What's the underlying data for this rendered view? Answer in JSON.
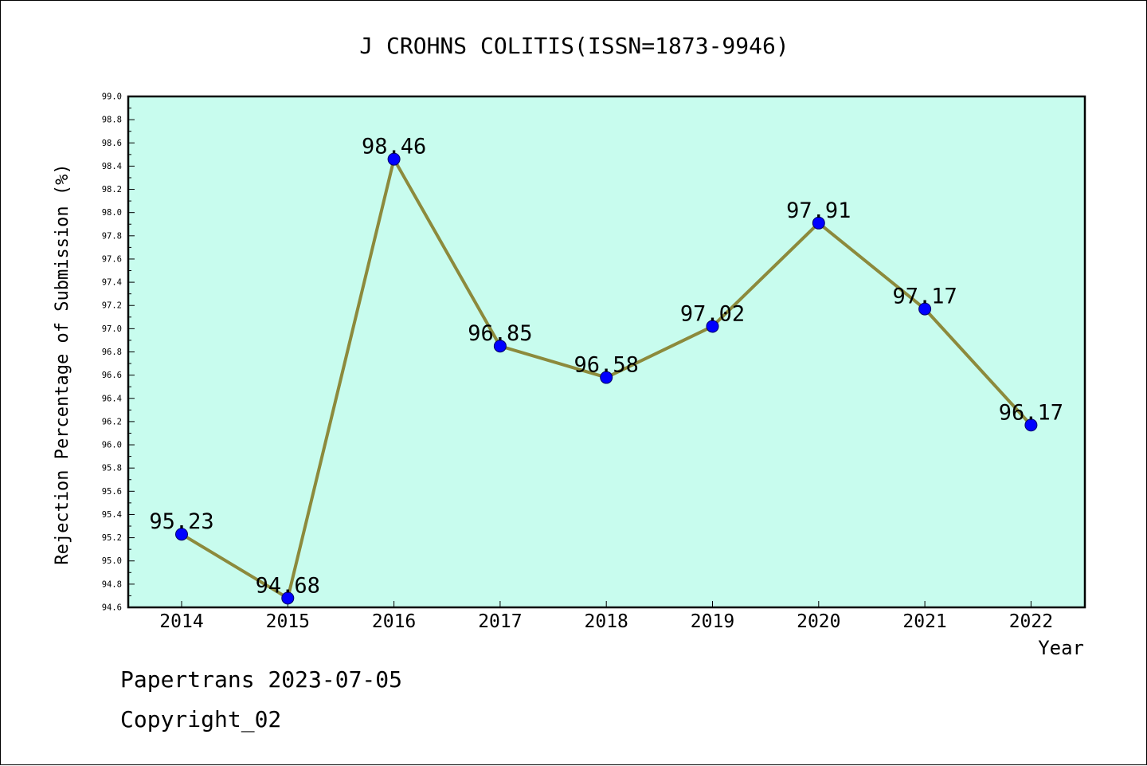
{
  "chart_data": {
    "type": "line",
    "title": "J CROHNS COLITIS(ISSN=1873-9946)",
    "xlabel": "Year",
    "ylabel": "Rejection Percentage of Submission (%)",
    "categories": [
      "2014",
      "2015",
      "2016",
      "2017",
      "2018",
      "2019",
      "2020",
      "2021",
      "2022"
    ],
    "values": [
      95.23,
      94.68,
      98.46,
      96.85,
      96.58,
      97.02,
      97.91,
      97.17,
      96.17
    ],
    "data_labels": [
      "95.23",
      "94.68",
      "98.46",
      "96.85",
      "96.58",
      "97.02",
      "97.91",
      "97.17",
      "96.17"
    ],
    "ylim": [
      94.6,
      99.0
    ],
    "yticks": [
      "94.6",
      "94.8",
      "95.0",
      "95.2",
      "95.4",
      "95.6",
      "95.8",
      "96.0",
      "96.2",
      "96.4",
      "96.6",
      "96.8",
      "97.0",
      "97.2",
      "97.4",
      "97.6",
      "97.8",
      "98.0",
      "98.2",
      "98.4",
      "98.6",
      "98.8",
      "99.0"
    ],
    "grid": false,
    "colors": {
      "plot_background": "#c8fcee",
      "line": "#8c8a3c",
      "marker": "#0000ff"
    }
  },
  "footer": {
    "line1": "Papertrans 2023-07-05",
    "line2": "Copyright_02"
  }
}
